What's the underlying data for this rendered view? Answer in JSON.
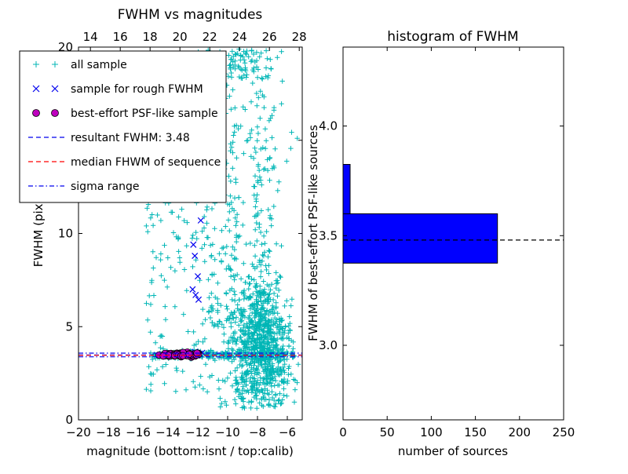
{
  "figure": {
    "background": "#ffffff"
  },
  "left_plot": {
    "title": "FWHM vs magnitudes",
    "xlabel": "magnitude (bottom:isnt / top:calib)",
    "ylabel": "FWHM (pix)"
  },
  "right_plot": {
    "title": "histogram of FWHM",
    "xlabel": "number of sources",
    "ylabel": "FWHM of best-effort PSF-like sources"
  },
  "legend": {
    "entries": [
      {
        "label": "all sample",
        "marker": "plus",
        "color": "#00b6b6"
      },
      {
        "label": "sample for rough FWHM",
        "marker": "x",
        "color": "#0000ee"
      },
      {
        "label": "best-effort PSF-like sample",
        "marker": "circle",
        "color": "#bf00bf",
        "edge": "#000000"
      },
      {
        "label": "resultant FWHM: 3.48",
        "marker": "dashed-line",
        "color": "#0000ee"
      },
      {
        "label": "median FHWM of sequence",
        "marker": "dashed-line",
        "color": "#ff0000"
      },
      {
        "label": "sigma range",
        "marker": "dashdot-line",
        "color": "#0000ee"
      }
    ]
  },
  "chart_data": [
    {
      "type": "scatter",
      "title": "FWHM vs magnitudes",
      "xlabel": "magnitude (bottom:isnt / top:calib)",
      "ylabel": "FWHM (pix)",
      "xlim": [
        -20,
        -5
      ],
      "ylim": [
        0,
        20
      ],
      "top_axis_xlim": [
        13.2,
        28.2
      ],
      "x_ticks": {
        "values": [
          -20,
          -18,
          -16,
          -14,
          -12,
          -10,
          -8,
          -6
        ],
        "labels": [
          "−20",
          "−18",
          "−16",
          "−14",
          "−12",
          "−10",
          "−8",
          "−6"
        ]
      },
      "top_ticks": {
        "values": [
          14,
          16,
          18,
          20,
          22,
          24,
          26,
          28
        ],
        "labels": [
          "14",
          "16",
          "18",
          "20",
          "22",
          "24",
          "26",
          "28"
        ]
      },
      "y_ticks": {
        "values": [
          0,
          5,
          10,
          15,
          20
        ],
        "labels": [
          "0",
          "5",
          "10",
          "15",
          "20"
        ]
      },
      "colors": {
        "all_sample": "#00b6b6",
        "rough": "#0000ee",
        "psf": "#bf00bf"
      },
      "all_sample_clusters": [
        {
          "n": 680,
          "x": {
            "dist": "normal",
            "mean": -7.8,
            "sd": 1.0,
            "min": -10.4,
            "max": -5.1
          },
          "y": {
            "dist": "normal",
            "mean": 3.9,
            "sd": 1.4,
            "min": 0.7,
            "max": 7.8
          }
        },
        {
          "n": 260,
          "x": {
            "dist": "normal",
            "mean": -7.9,
            "sd": 0.8,
            "min": -10.0,
            "max": -5.2
          },
          "y": {
            "dist": "power",
            "base": 5.0,
            "range": 15.0,
            "exp": 2.0,
            "max": 20
          }
        },
        {
          "n": 110,
          "x": {
            "dist": "normal",
            "mean": -9.7,
            "sd": 0.35
          },
          "y": {
            "dist": "power",
            "base": 4.0,
            "range": 16.0,
            "exp": 1.2,
            "max": 20
          }
        },
        {
          "n": 45,
          "x": {
            "dist": "normal",
            "mean": -8.6,
            "sd": 0.9,
            "min": -10.5,
            "max": -6.3
          },
          "y": {
            "dist": "uniform",
            "min": 18.3,
            "max": 20
          }
        },
        {
          "n": 230,
          "x": {
            "dist": "uniform",
            "min": -15.2,
            "max": -5.5
          },
          "y": {
            "dist": "normal",
            "mean": 3.5,
            "sd": 0.13
          }
        },
        {
          "n": 130,
          "x": {
            "dist": "uniform",
            "min": -15.5,
            "max": -10.5
          },
          "y": {
            "dist": "uniform",
            "min": 1.5,
            "max": 12.5
          }
        },
        {
          "n": 90,
          "x": {
            "dist": "normal",
            "mean": -8.2,
            "sd": 1.3,
            "min": -11.0,
            "max": -5.3
          },
          "y": {
            "dist": "uniform",
            "min": 0.6,
            "max": 2.3
          }
        },
        {
          "n": 70,
          "x": {
            "dist": "normal",
            "mean": -11.1,
            "sd": 0.4
          },
          "y": {
            "dist": "power",
            "base": 5.0,
            "range": 15.0,
            "exp": 1.5,
            "max": 20
          }
        }
      ],
      "rough_fwhm_points": [
        [
          -12.2,
          8.8
        ],
        [
          -12.0,
          7.7
        ],
        [
          -12.35,
          7.0
        ],
        [
          -11.95,
          6.45
        ],
        [
          -12.15,
          6.7
        ],
        [
          -11.8,
          10.7
        ],
        [
          -12.3,
          9.4
        ],
        [
          -12.5,
          3.6
        ],
        [
          -12.2,
          3.65
        ],
        [
          -11.9,
          3.55
        ],
        [
          -11.7,
          3.6
        ],
        [
          -12.05,
          3.45
        ]
      ],
      "psf_cluster": {
        "n": 46,
        "x": {
          "dist": "normal",
          "mean": -13.1,
          "sd": 0.8,
          "min": -14.6,
          "max": -11.7
        },
        "y": {
          "dist": "normal",
          "mean": 3.5,
          "sd": 0.055,
          "min": 3.35,
          "max": 3.65
        }
      },
      "lines": [
        {
          "name": "resultant-fwhm",
          "y": 3.48,
          "style": "dashed",
          "color": "#0000ee"
        },
        {
          "name": "median-fhwm",
          "y": 3.46,
          "style": "dashed",
          "color": "#ff0000"
        },
        {
          "name": "sigma-range-low",
          "y": 3.38,
          "style": "dashdot",
          "color": "#0000ee"
        },
        {
          "name": "sigma-range-high",
          "y": 3.58,
          "style": "dashdot",
          "color": "#0000ee"
        }
      ],
      "resultant_fwhm": 3.48
    },
    {
      "type": "bar",
      "orientation": "horizontal",
      "title": "histogram of FWHM",
      "xlabel": "number of sources",
      "ylabel": "FWHM of best-effort PSF-like sources",
      "xlim": [
        0,
        250
      ],
      "ylim": [
        2.66,
        4.36
      ],
      "x_ticks": {
        "values": [
          0,
          50,
          100,
          150,
          200,
          250
        ],
        "labels": [
          "0",
          "50",
          "100",
          "150",
          "200",
          "250"
        ]
      },
      "y_ticks": {
        "values": [
          3.0,
          3.5,
          4.0
        ],
        "labels": [
          "3.0",
          "3.5",
          "4.0"
        ]
      },
      "bars": [
        {
          "from": 3.375,
          "to": 3.6,
          "count": 175
        },
        {
          "from": 3.6,
          "to": 3.825,
          "count": 8
        }
      ],
      "dashed_line_y": 3.48,
      "bar_color": "#0000ff",
      "bar_edge": "#000000"
    }
  ]
}
